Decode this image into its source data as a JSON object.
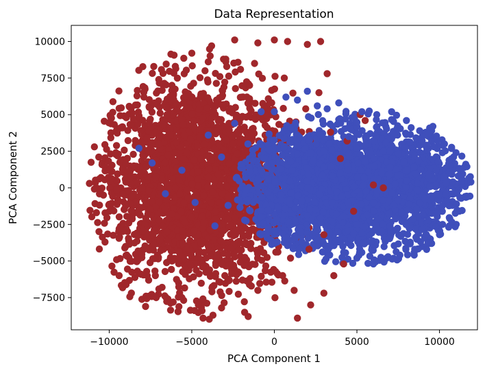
{
  "chart_data": {
    "type": "scatter",
    "title": "Data Representation",
    "xlabel": "PCA Component 1",
    "ylabel": "PCA Component 2",
    "xlim": [
      -12300,
      12300
    ],
    "ylim": [
      -9700,
      11100
    ],
    "xticks": [
      -10000,
      -5000,
      0,
      5000,
      10000
    ],
    "xtick_labels": [
      "−10000",
      "−5000",
      "0",
      "5000",
      "10000"
    ],
    "yticks": [
      -7500,
      -5000,
      -2500,
      0,
      2500,
      5000,
      7500,
      10000
    ],
    "ytick_labels": [
      "−7500",
      "−5000",
      "−2500",
      "0",
      "2500",
      "5000",
      "7500",
      "10000"
    ],
    "grid": false,
    "legend": "none",
    "series": [
      {
        "color": "#a0272b",
        "description_points": "dense cluster, left-centred",
        "points": [
          [
            -11200,
            300
          ],
          [
            -10500,
            700
          ],
          [
            -10000,
            1200
          ],
          [
            -9800,
            -1500
          ],
          [
            -9600,
            2400
          ],
          [
            -9400,
            -2800
          ],
          [
            -9200,
            4100
          ],
          [
            -9000,
            -4000
          ],
          [
            -8600,
            5100
          ],
          [
            -8400,
            -5000
          ],
          [
            -7900,
            6200
          ],
          [
            -7700,
            -6000
          ],
          [
            -7000,
            7400
          ],
          [
            -6800,
            -6800
          ],
          [
            -6000,
            8300
          ],
          [
            -5600,
            -7500
          ],
          [
            -5000,
            9200
          ],
          [
            -4600,
            -8000
          ],
          [
            -3800,
            9700
          ],
          [
            -3200,
            -8200
          ],
          [
            -2400,
            10100
          ],
          [
            -1800,
            -8500
          ],
          [
            -1000,
            9900
          ],
          [
            0,
            10100
          ],
          [
            800,
            10000
          ],
          [
            1400,
            -8900
          ],
          [
            2000,
            9800
          ],
          [
            2800,
            10000
          ],
          [
            2200,
            -8000
          ],
          [
            3000,
            -7200
          ],
          [
            3600,
            -6000
          ],
          [
            4200,
            -5200
          ],
          [
            3200,
            7800
          ],
          [
            2700,
            6500
          ],
          [
            1900,
            5400
          ],
          [
            4400,
            3200
          ],
          [
            3400,
            3800
          ],
          [
            4000,
            2000
          ],
          [
            5200,
            5000
          ],
          [
            5500,
            4600
          ],
          [
            6000,
            200
          ],
          [
            6600,
            0
          ],
          [
            4800,
            -1600
          ],
          [
            3000,
            -3200
          ],
          [
            2100,
            -4200
          ],
          [
            -7000,
            3000
          ],
          [
            -6500,
            -3000
          ],
          [
            -6000,
            0
          ],
          [
            -5500,
            2000
          ],
          [
            -5000,
            -2000
          ],
          [
            -4500,
            4000
          ],
          [
            -4000,
            -4000
          ],
          [
            -3500,
            6000
          ],
          [
            -3000,
            -6000
          ],
          [
            -2500,
            3000
          ],
          [
            -2000,
            -3000
          ],
          [
            -1500,
            7000
          ],
          [
            -1000,
            -7000
          ],
          [
            -500,
            5000
          ],
          [
            500,
            -6000
          ],
          [
            -8000,
            0
          ],
          [
            -8500,
            1500
          ],
          [
            -7500,
            -1500
          ],
          [
            -6500,
            5000
          ],
          [
            -5800,
            -5000
          ],
          [
            -9000,
            500
          ],
          [
            -4200,
            8000
          ],
          [
            -1200,
            8500
          ],
          [
            600,
            7500
          ],
          [
            1200,
            -7000
          ]
        ]
      },
      {
        "color": "#3f4fbb",
        "description_points": "dense cluster, right-centred",
        "points": [
          [
            -8200,
            2700
          ],
          [
            -7400,
            1700
          ],
          [
            -6600,
            -400
          ],
          [
            -5600,
            1200
          ],
          [
            -4800,
            -1000
          ],
          [
            -4000,
            3600
          ],
          [
            -3200,
            2100
          ],
          [
            -2400,
            4400
          ],
          [
            -1600,
            3000
          ],
          [
            -800,
            5200
          ],
          [
            0,
            5200
          ],
          [
            700,
            6200
          ],
          [
            1400,
            6000
          ],
          [
            2000,
            6600
          ],
          [
            2600,
            5600
          ],
          [
            3200,
            5400
          ],
          [
            3900,
            5800
          ],
          [
            4700,
            4800
          ],
          [
            5300,
            5200
          ],
          [
            6200,
            5000
          ],
          [
            7100,
            5200
          ],
          [
            8000,
            4600
          ],
          [
            8800,
            3900
          ],
          [
            9600,
            4200
          ],
          [
            10300,
            3000
          ],
          [
            11000,
            2400
          ],
          [
            11500,
            1400
          ],
          [
            11900,
            400
          ],
          [
            11700,
            -600
          ],
          [
            11200,
            -1600
          ],
          [
            10600,
            -2600
          ],
          [
            10000,
            -3200
          ],
          [
            9300,
            -3800
          ],
          [
            8500,
            -4200
          ],
          [
            7600,
            -4600
          ],
          [
            6800,
            -4800
          ],
          [
            6000,
            -5200
          ],
          [
            5000,
            -4800
          ],
          [
            4200,
            -4400
          ],
          [
            3400,
            -4000
          ],
          [
            2600,
            -3600
          ],
          [
            1600,
            -3000
          ],
          [
            800,
            -3400
          ],
          [
            0,
            -3800
          ],
          [
            -800,
            -3200
          ],
          [
            -1800,
            -2200
          ],
          [
            -2800,
            -1200
          ],
          [
            -3600,
            -2600
          ],
          [
            2000,
            0
          ],
          [
            4000,
            1000
          ],
          [
            6000,
            -1000
          ],
          [
            8000,
            500
          ],
          [
            10000,
            -500
          ],
          [
            3000,
            2500
          ],
          [
            5000,
            -2500
          ],
          [
            7000,
            2500
          ],
          [
            9000,
            -1800
          ],
          [
            1000,
            1800
          ],
          [
            -1000,
            600
          ],
          [
            5500,
            1800
          ],
          [
            8500,
            2200
          ],
          [
            9800,
            1200
          ],
          [
            6500,
            -3000
          ],
          [
            4500,
            3500
          ],
          [
            2500,
            -1500
          ]
        ]
      }
    ]
  }
}
